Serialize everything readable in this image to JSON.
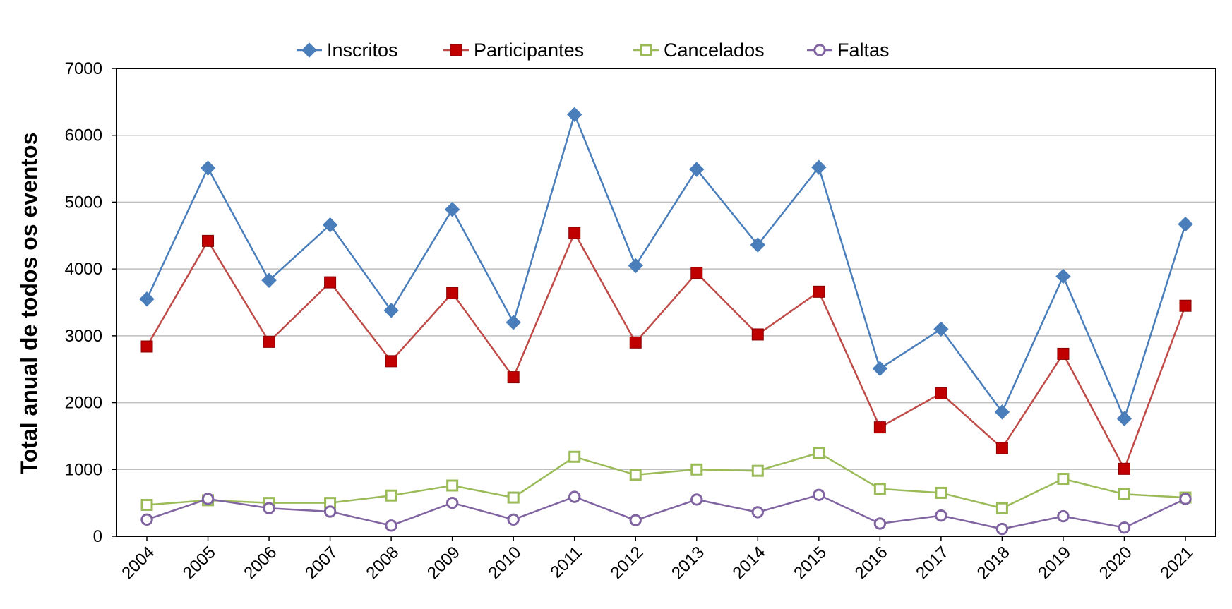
{
  "chart_data": {
    "type": "line",
    "title": "",
    "xlabel": "",
    "ylabel": "Total anual de todos os eventos",
    "ylim": [
      0,
      7000
    ],
    "yticks": [
      0,
      1000,
      2000,
      3000,
      4000,
      5000,
      6000,
      7000
    ],
    "grid": true,
    "legend_position": "top-center",
    "categories": [
      "2004",
      "2005",
      "2006",
      "2007",
      "2008",
      "2009",
      "2010",
      "2011",
      "2012",
      "2013",
      "2014",
      "2015",
      "2016",
      "2017",
      "2018",
      "2019",
      "2020",
      "2021"
    ],
    "series": [
      {
        "name": "Inscritos",
        "color": "#4a7ebb",
        "marker": "diamond-filled",
        "values": [
          3550,
          5510,
          3830,
          4660,
          3380,
          4890,
          3200,
          6310,
          4050,
          5490,
          4360,
          5520,
          2510,
          3100,
          1860,
          3890,
          1760,
          4670
        ]
      },
      {
        "name": "Participantes",
        "color": "#be4b48",
        "marker_color": "#c00000",
        "marker": "square-filled",
        "values": [
          2840,
          4420,
          2910,
          3800,
          2620,
          3640,
          2380,
          4540,
          2900,
          3940,
          3020,
          3660,
          1630,
          2140,
          1320,
          2730,
          1010,
          3450
        ]
      },
      {
        "name": "Cancelados",
        "color": "#9bbb59",
        "marker": "square-open",
        "values": [
          470,
          540,
          500,
          500,
          610,
          760,
          580,
          1190,
          920,
          1000,
          980,
          1250,
          710,
          650,
          420,
          860,
          630,
          580
        ]
      },
      {
        "name": "Faltas",
        "color": "#8064a2",
        "marker": "circle-open",
        "values": [
          250,
          560,
          420,
          370,
          160,
          500,
          250,
          590,
          240,
          550,
          360,
          620,
          190,
          310,
          110,
          300,
          130,
          560
        ]
      }
    ]
  }
}
